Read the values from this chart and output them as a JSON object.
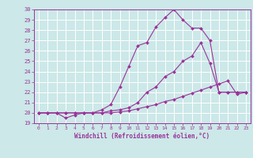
{
  "xlabel": "Windchill (Refroidissement éolien,°C)",
  "xlim": [
    -0.5,
    23.5
  ],
  "ylim": [
    19,
    30
  ],
  "yticks": [
    19,
    20,
    21,
    22,
    23,
    24,
    25,
    26,
    27,
    28,
    29,
    30
  ],
  "xticks": [
    0,
    1,
    2,
    3,
    4,
    5,
    6,
    7,
    8,
    9,
    10,
    11,
    12,
    13,
    14,
    15,
    16,
    17,
    18,
    19,
    20,
    21,
    22,
    23
  ],
  "background_color": "#cce8e8",
  "line_color": "#993399",
  "grid_color": "#ffffff",
  "line1_x": [
    0,
    1,
    2,
    3,
    4,
    5,
    6,
    7,
    8,
    9,
    10,
    11,
    12,
    13,
    14,
    15,
    16,
    17,
    18,
    19,
    20,
    21,
    22,
    23
  ],
  "line1_y": [
    20,
    20,
    20,
    19.5,
    19.8,
    20.0,
    20.0,
    20.0,
    20.0,
    20.1,
    20.2,
    20.4,
    20.6,
    20.8,
    21.1,
    21.3,
    21.6,
    21.9,
    22.2,
    22.5,
    22.8,
    23.1,
    21.8,
    22.0
  ],
  "line2_x": [
    0,
    1,
    2,
    3,
    4,
    5,
    6,
    7,
    8,
    9,
    10,
    11,
    12,
    13,
    14,
    15,
    16,
    17,
    18,
    19,
    20,
    21,
    22,
    23
  ],
  "line2_y": [
    20,
    20,
    20,
    20.0,
    20.0,
    20.0,
    20.0,
    20.3,
    20.8,
    22.5,
    24.5,
    26.5,
    26.8,
    28.3,
    29.2,
    30.0,
    29.0,
    28.2,
    28.2,
    27.0,
    22.0,
    22.0,
    22.0,
    22.0
  ],
  "line3_x": [
    0,
    1,
    2,
    3,
    4,
    5,
    6,
    7,
    8,
    9,
    10,
    11,
    12,
    13,
    14,
    15,
    16,
    17,
    18,
    19,
    20,
    21,
    22,
    23
  ],
  "line3_y": [
    20,
    20,
    20,
    20.0,
    20.0,
    20.0,
    20.0,
    20.0,
    20.2,
    20.3,
    20.5,
    21.0,
    22.0,
    22.5,
    23.5,
    24.0,
    25.0,
    25.5,
    26.8,
    24.8,
    22.0,
    22.0,
    22.0,
    22.0
  ]
}
